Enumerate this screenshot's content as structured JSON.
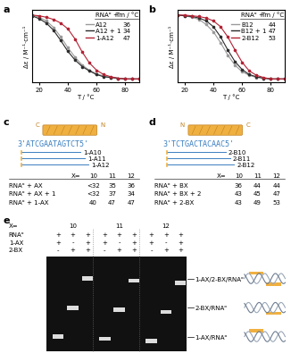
{
  "panel_labels": [
    "a",
    "b",
    "c",
    "d",
    "e"
  ],
  "chart_data": [
    {
      "type": "line",
      "x_label": "T / °C",
      "y_label": "Δε / M⁻¹·cm⁻¹",
      "x": [
        15,
        20,
        25,
        30,
        35,
        40,
        45,
        50,
        55,
        60,
        65,
        70,
        75,
        80,
        85,
        90
      ],
      "xlim": [
        15,
        90
      ],
      "xticks": [
        20,
        40,
        60,
        80
      ],
      "ylim": [
        0,
        1
      ],
      "tick_labels": "x",
      "marker": "o",
      "legend_header": [
        "RNAᵒ +",
        "Tm / °C"
      ],
      "series": [
        {
          "name": "A12",
          "color": "#9a9a9a",
          "tm": 36,
          "values": [
            0.93,
            0.9,
            0.85,
            0.76,
            0.63,
            0.48,
            0.35,
            0.24,
            0.17,
            0.12,
            0.09,
            0.07,
            0.06,
            0.05,
            0.05,
            0.05
          ]
        },
        {
          "name": "A12 + 1",
          "color": "#2b2b2b",
          "tm": 34,
          "values": [
            0.92,
            0.88,
            0.82,
            0.72,
            0.58,
            0.43,
            0.31,
            0.22,
            0.16,
            0.11,
            0.08,
            0.07,
            0.06,
            0.05,
            0.05,
            0.05
          ]
        },
        {
          "name": "1-A12",
          "color": "#b22234",
          "tm": 47,
          "values": [
            0.93,
            0.92,
            0.9,
            0.87,
            0.82,
            0.74,
            0.6,
            0.42,
            0.27,
            0.17,
            0.11,
            0.08,
            0.06,
            0.05,
            0.05,
            0.05
          ]
        }
      ]
    },
    {
      "type": "line",
      "x_label": "T / °C",
      "y_label": "Δε / M⁻¹·cm⁻¹",
      "x": [
        15,
        20,
        25,
        30,
        35,
        40,
        45,
        50,
        55,
        60,
        65,
        70,
        75,
        80,
        85,
        90
      ],
      "xlim": [
        15,
        90
      ],
      "xticks": [
        20,
        40,
        60,
        80
      ],
      "ylim": [
        0,
        1
      ],
      "tick_labels": "x",
      "marker": "o",
      "legend_header": [
        "RNAᵒ +",
        "Tm / °C"
      ],
      "series": [
        {
          "name": "B12",
          "color": "#9a9a9a",
          "tm": 44,
          "values": [
            0.93,
            0.92,
            0.9,
            0.87,
            0.8,
            0.7,
            0.55,
            0.38,
            0.24,
            0.15,
            0.1,
            0.07,
            0.06,
            0.05,
            0.05,
            0.05
          ]
        },
        {
          "name": "B12 + 1",
          "color": "#2b2b2b",
          "tm": 47,
          "values": [
            0.93,
            0.92,
            0.91,
            0.89,
            0.85,
            0.77,
            0.63,
            0.45,
            0.29,
            0.18,
            0.11,
            0.08,
            0.06,
            0.05,
            0.05,
            0.05
          ]
        },
        {
          "name": "2-B12",
          "color": "#b22234",
          "tm": 53,
          "values": [
            0.93,
            0.93,
            0.92,
            0.91,
            0.89,
            0.85,
            0.77,
            0.63,
            0.45,
            0.28,
            0.16,
            0.1,
            0.07,
            0.05,
            0.05,
            0.05
          ]
        }
      ]
    }
  ],
  "diagrams": [
    {
      "termini": [
        "C",
        "N"
      ],
      "strand": {
        "left": "3'",
        "sequence": "ATCGAATAGTCT",
        "right": "5'"
      },
      "probes": [
        "1-A10",
        "1-A11",
        "1-A12"
      ],
      "table": {
        "header": [
          "X=",
          10,
          11,
          12
        ],
        "rows": [
          [
            "RNAᵒ + AX",
            "<32",
            35,
            36
          ],
          [
            "RNAᵒ + AX + 1",
            "<32",
            37,
            34
          ],
          [
            "RNAᵒ + 1-AX",
            40,
            47,
            47
          ]
        ]
      }
    },
    {
      "termini": [
        "N",
        "C"
      ],
      "strand": {
        "left": "3'",
        "sequence": "TCTGACTACAAC",
        "right": "5'"
      },
      "probes": [
        "2-B10",
        "2-B11",
        "2-B12"
      ],
      "table": {
        "header": [
          "X=",
          10,
          11,
          12
        ],
        "rows": [
          [
            "RNAᵒ + BX",
            36,
            44,
            44
          ],
          [
            "RNAᵒ + BX + 2",
            43,
            45,
            47
          ],
          [
            "RNAᵒ + 2-BX",
            43,
            49,
            53
          ]
        ]
      }
    }
  ],
  "gel": {
    "header": "X=",
    "groups": [
      10,
      11,
      12
    ],
    "rows": [
      {
        "name": "RNAᵒ",
        "lanes": [
          "+",
          "+",
          "+"
        ]
      },
      {
        "name": "1-AX",
        "lanes": [
          "+",
          "-",
          "+"
        ]
      },
      {
        "name": "2-BX",
        "lanes": [
          "-",
          "+",
          "+"
        ]
      }
    ],
    "complexes": [
      "1-AX/2-BX/RNAᵒ",
      "2-BX/RNAᵒ",
      "1-AX/RNAᵒ"
    ]
  }
}
